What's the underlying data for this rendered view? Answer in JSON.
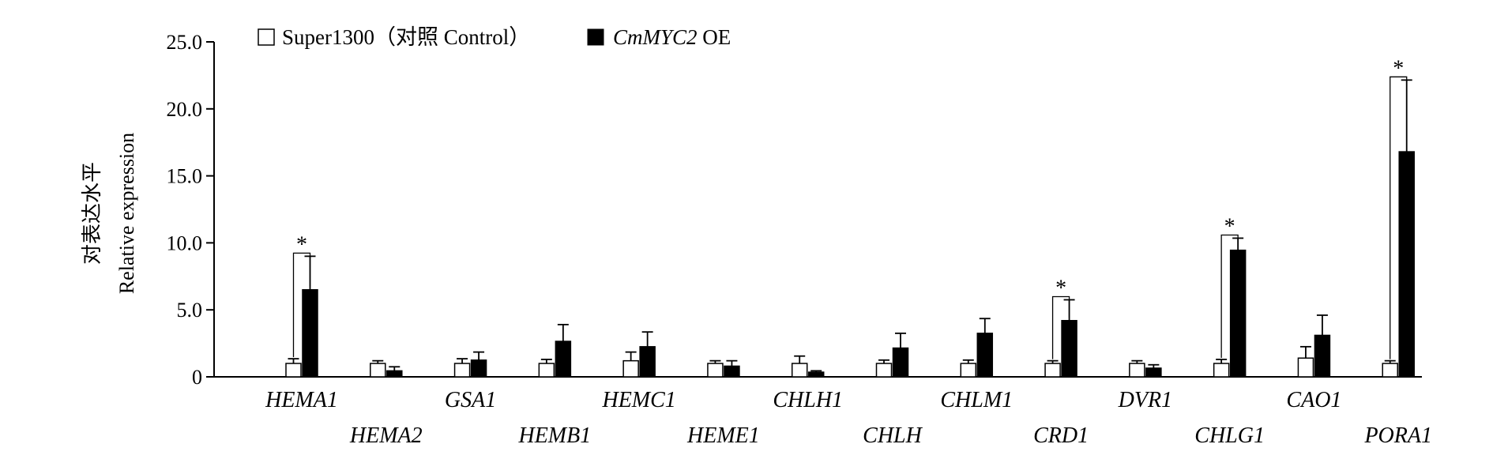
{
  "chart_data": {
    "type": "bar",
    "ylabel_cn": "对表达水平",
    "ylabel_en": "Relative expression",
    "ylim": [
      0,
      25
    ],
    "yticks": [
      "0",
      "5.0",
      "10.0",
      "15.0",
      "20.0",
      "25.0"
    ],
    "ytick_values": [
      0,
      5,
      10,
      15,
      20,
      25
    ],
    "legend": {
      "placement": "top-left",
      "items": [
        {
          "label": "Super1300（对照  Control）",
          "fill": "#ffffff"
        },
        {
          "label_italic": "CmMYC2",
          "label_rest": " OE",
          "fill": "#000000"
        }
      ]
    },
    "categories": [
      "HEMA1",
      "HEMA2",
      "GSA1",
      "HEMB1",
      "HEMC1",
      "HEME1",
      "CHLH1",
      "CHLH",
      "CHLM1",
      "CRD1",
      "DVR1",
      "CHLG1",
      "CAO1",
      "PORA1"
    ],
    "series": [
      {
        "name": "Super1300（对照  Control）",
        "color": "#ffffff",
        "values": [
          1.0,
          1.0,
          1.0,
          1.0,
          1.2,
          1.0,
          1.0,
          1.0,
          1.0,
          1.0,
          1.0,
          1.0,
          1.4,
          1.0
        ],
        "errors": [
          0.35,
          0.2,
          0.35,
          0.3,
          0.65,
          0.2,
          0.55,
          0.25,
          0.25,
          0.2,
          0.2,
          0.3,
          0.85,
          0.2
        ]
      },
      {
        "name": "CmMYC2 OE",
        "color": "#000000",
        "values": [
          6.5,
          0.45,
          1.25,
          2.65,
          2.25,
          0.8,
          0.35,
          2.15,
          3.25,
          4.2,
          0.65,
          9.45,
          3.1,
          16.8
        ],
        "errors": [
          2.5,
          0.3,
          0.6,
          1.25,
          1.1,
          0.4,
          0.1,
          1.1,
          1.1,
          1.55,
          0.25,
          0.9,
          1.5,
          5.35
        ]
      }
    ],
    "significance": [
      {
        "category": "HEMA1",
        "label": "*"
      },
      {
        "category": "CRD1",
        "label": "*"
      },
      {
        "category": "CHLG1",
        "label": "*"
      },
      {
        "category": "PORA1",
        "label": "*"
      }
    ]
  }
}
